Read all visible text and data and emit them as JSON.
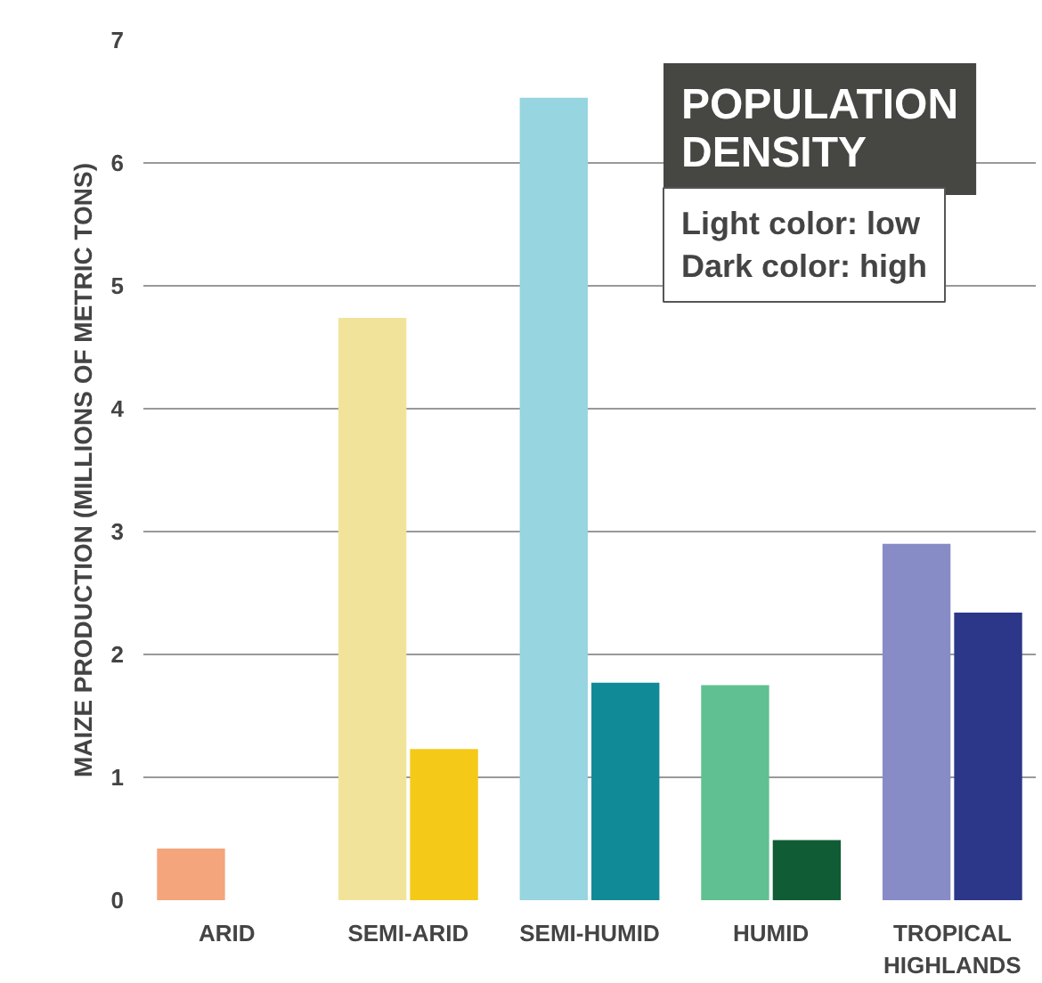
{
  "chart_data": {
    "type": "bar",
    "ylabel": "MAIZE PRODUCTION (MILLIONS OF METRIC TONS)",
    "legend_title": "POPULATION DENSITY",
    "annotations": [
      "Light color: low",
      "Dark color: high"
    ],
    "categories": [
      "ARID",
      "SEMI-ARID",
      "SEMI-HUMID",
      "HUMID",
      "TROPICAL HIGHLANDS"
    ],
    "series": [
      {
        "colors": [
          "#f4a57c",
          "#f2e39a",
          "#97d5e0",
          "#60c092",
          "#878cc6"
        ],
        "values": [
          0.42,
          4.74,
          6.53,
          1.75,
          2.9
        ]
      },
      {
        "colors": [
          "#f4a57c",
          "#f5c918",
          "#108a96",
          "#105c34",
          "#2c378a"
        ],
        "values": [
          null,
          1.23,
          1.77,
          0.49,
          2.34
        ]
      }
    ],
    "ylim": [
      0,
      7
    ],
    "yticks": [
      0,
      1,
      2,
      3,
      4,
      5,
      6,
      7
    ],
    "grid": "y"
  }
}
